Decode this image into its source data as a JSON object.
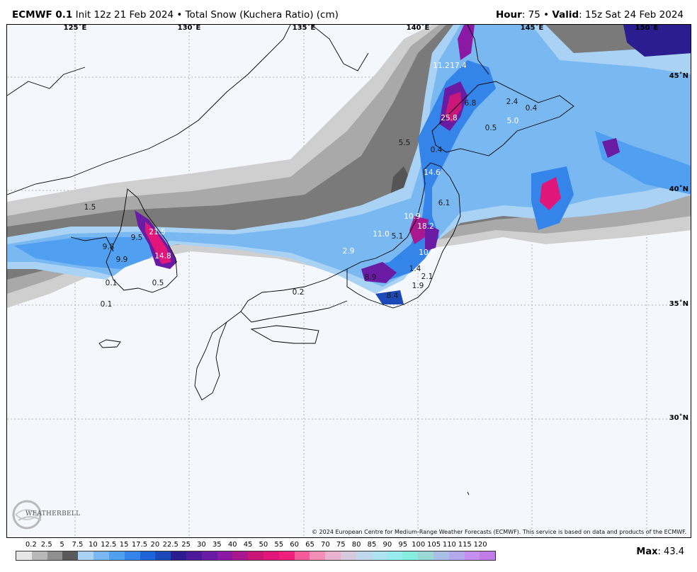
{
  "header": {
    "model": "ECMWF 0.1",
    "init": "Init 12z 21 Feb 2024",
    "product": "Total Snow (Kuchera Ratio) (cm)",
    "hour_label": "Hour",
    "hour_value": ": 75",
    "valid_label": "Valid",
    "valid_value": ": 15z Sat 24 Feb 2024"
  },
  "map": {
    "lon_labels": [
      "125˚E",
      "130˚E",
      "135˚E",
      "140˚E",
      "145˚E",
      "150˚E"
    ],
    "lat_labels": [
      "45˚N",
      "40˚N",
      "35˚N",
      "30˚N"
    ],
    "point_values": [
      {
        "text": "11.2",
        "style": "light"
      },
      {
        "text": "17.4",
        "style": "light"
      },
      {
        "text": "6.8",
        "style": "dark"
      },
      {
        "text": "2.4",
        "style": "dark"
      },
      {
        "text": "0.4",
        "style": "dark"
      },
      {
        "text": "25.8",
        "style": "light"
      },
      {
        "text": "0.5",
        "style": "dark"
      },
      {
        "text": "5.0",
        "style": "light"
      },
      {
        "text": "5.5",
        "style": "dark"
      },
      {
        "text": "0.4",
        "style": "dark"
      },
      {
        "text": "14.6",
        "style": "light"
      },
      {
        "text": "6.1",
        "style": "dark"
      },
      {
        "text": "10.9",
        "style": "light"
      },
      {
        "text": "18.2",
        "style": "light"
      },
      {
        "text": "11.0",
        "style": "light"
      },
      {
        "text": "5.1",
        "style": "dark"
      },
      {
        "text": "10.8",
        "style": "light"
      },
      {
        "text": "2.9",
        "style": "light"
      },
      {
        "text": "1.4",
        "style": "dark"
      },
      {
        "text": "2.1",
        "style": "dark"
      },
      {
        "text": "8.9",
        "style": "dark"
      },
      {
        "text": "1.9",
        "style": "dark"
      },
      {
        "text": "8.4",
        "style": "dark"
      },
      {
        "text": "1.5",
        "style": "dark"
      },
      {
        "text": "21.5",
        "style": "light"
      },
      {
        "text": "9.5",
        "style": "dark"
      },
      {
        "text": "9.8",
        "style": "dark"
      },
      {
        "text": "9.9",
        "style": "dark"
      },
      {
        "text": "14.8",
        "style": "light"
      },
      {
        "text": "0.1",
        "style": "dark"
      },
      {
        "text": "0.5",
        "style": "dark"
      },
      {
        "text": "0.1",
        "style": "dark"
      },
      {
        "text": "0.2",
        "style": "dark"
      }
    ],
    "copyright": "© 2024 European Centre for Medium-Range Weather Forecasts (ECMWF). This service is based on data and products of the ECMWF.",
    "logo_text": "WEATHERBELL"
  },
  "legend": {
    "labels": [
      "0.2",
      "2.5",
      "5",
      "7.5",
      "10",
      "12.5",
      "15",
      "17.5",
      "20",
      "22.5",
      "25",
      "30",
      "35",
      "40",
      "45",
      "50",
      "55",
      "60",
      "65",
      "70",
      "75",
      "80",
      "85",
      "90",
      "95",
      "100",
      "105",
      "110",
      "115",
      "120"
    ],
    "colors": [
      "#e6e6e6",
      "#b8b8b8",
      "#8f8f8f",
      "#5a5a5a",
      "#a9d2f5",
      "#7ab8f2",
      "#519ff0",
      "#3584ea",
      "#1f63d8",
      "#1b49b8",
      "#2b1d8f",
      "#4d1a9c",
      "#6a1ba4",
      "#8a1aa3",
      "#a8198f",
      "#c81679",
      "#e0167a",
      "#f01f7d",
      "#f55a99",
      "#f38fb7",
      "#e9b2cf",
      "#d6cadf",
      "#c0d8ec",
      "#aee3f2",
      "#98ebee",
      "#86ede0",
      "#9ad9d6",
      "#a8c0e6",
      "#b5a9ed",
      "#c48ff0",
      "#c07de8"
    ],
    "max_label": "Max",
    "max_value": ": 43.4"
  },
  "colors": {
    "ocean": "#f4f8fc",
    "coast": "#000000",
    "grid": "#9a9a9a"
  }
}
